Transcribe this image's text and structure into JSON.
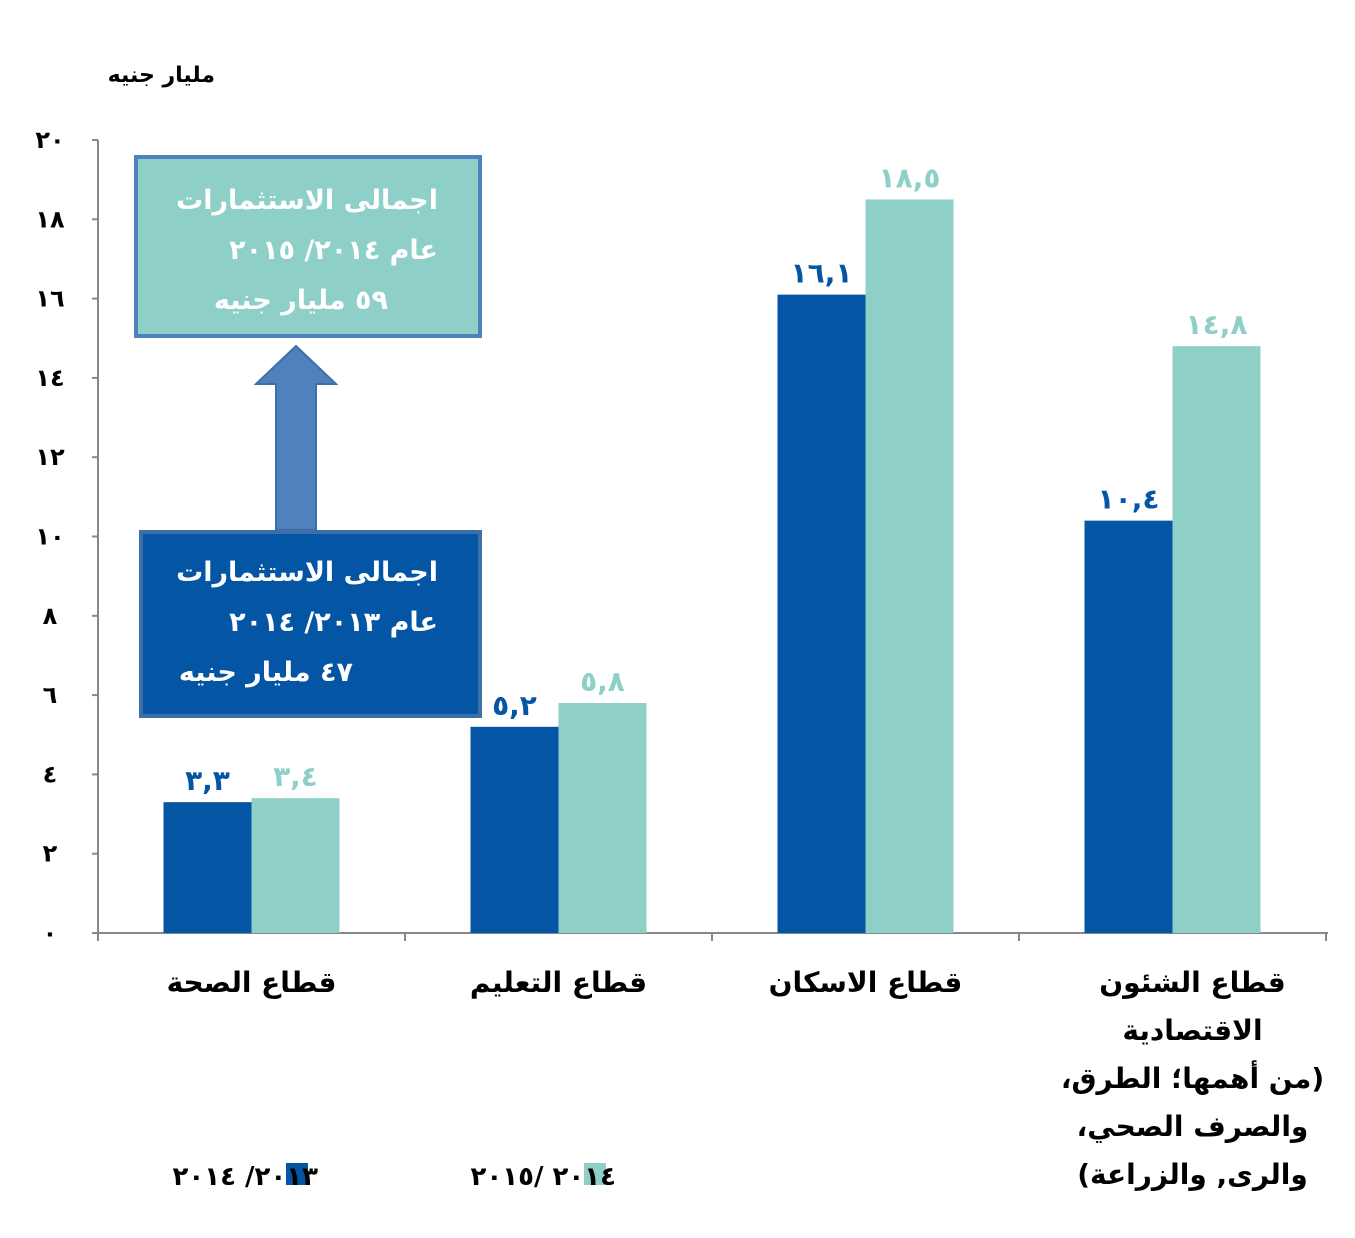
{
  "chart_data": {
    "type": "bar",
    "ylabel": "مليار جنيه",
    "ylim": [
      0,
      20
    ],
    "yticks": [
      "٠",
      "٢",
      "٤",
      "٦",
      "٨",
      "١٠",
      "١٢",
      "١٤",
      "١٦",
      "١٨",
      "٢٠"
    ],
    "categories": [
      [
        "قطاع الصحة"
      ],
      [
        "قطاع التعليم"
      ],
      [
        "قطاع الاسكان"
      ],
      [
        "قطاع الشئون",
        "الاقتصادية",
        "(من أهمها؛ الطرق،",
        "والصرف الصحي،",
        "والرى, والزراعة)"
      ]
    ],
    "series": [
      {
        "name": "٢٠١٣/ ٢٠١٤",
        "color": "#0455A4",
        "values": [
          3.3,
          5.2,
          16.1,
          10.4
        ],
        "labels": [
          "٣,٣",
          "٥,٢",
          "١٦,١",
          "١٠,٤"
        ]
      },
      {
        "name": "٢٠١٤ /٢٠١٥",
        "color": "#8ECFC8",
        "values": [
          3.4,
          5.8,
          18.5,
          14.8
        ],
        "labels": [
          "٣,٤",
          "٥,٨",
          "١٨,٥",
          "١٤,٨"
        ]
      }
    ],
    "grid": false,
    "legend": "bottom-left"
  },
  "annotations": {
    "total_2015": {
      "lines": [
        "اجمالى الاستثمارات",
        "عام ٢٠١٤/ ٢٠١٥",
        "٥٩ مليار جنيه"
      ],
      "color": "#8ECFC8"
    },
    "total_2014": {
      "lines": [
        "اجمالى الاستثمارات",
        "عام ٢٠١٣/ ٢٠١٤",
        "٤٧ مليار جنيه"
      ],
      "color": "#0455A4"
    },
    "arrow_color": "#4F81BD"
  }
}
